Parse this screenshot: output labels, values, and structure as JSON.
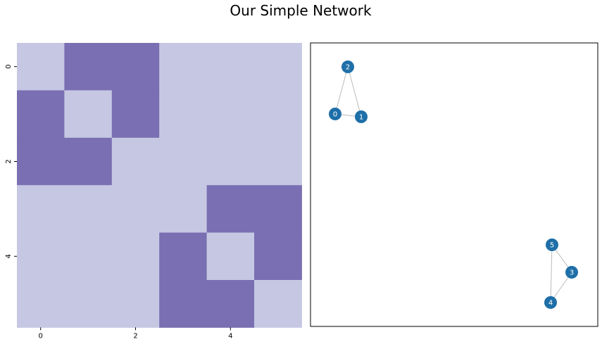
{
  "title": "Our Simple Network",
  "chart_data": [
    {
      "type": "heatmap",
      "rows": [
        0,
        1,
        2,
        3,
        4,
        5
      ],
      "cols": [
        0,
        1,
        2,
        3,
        4,
        5
      ],
      "matrix": [
        [
          0,
          1,
          1,
          0,
          0,
          0
        ],
        [
          1,
          0,
          1,
          0,
          0,
          0
        ],
        [
          1,
          1,
          0,
          0,
          0,
          0
        ],
        [
          0,
          0,
          0,
          0,
          1,
          1
        ],
        [
          0,
          0,
          0,
          1,
          0,
          1
        ],
        [
          0,
          0,
          0,
          1,
          1,
          0
        ]
      ],
      "xticks": [
        "0",
        "2",
        "4"
      ],
      "yticks": [
        "0",
        "2",
        "4"
      ],
      "colors": {
        "zero": "#c6c8e3",
        "one": "#7a6fb2"
      }
    },
    {
      "type": "network",
      "nodes": [
        {
          "id": "0"
        },
        {
          "id": "1"
        },
        {
          "id": "2"
        },
        {
          "id": "3"
        },
        {
          "id": "4"
        },
        {
          "id": "5"
        }
      ],
      "edges": [
        [
          "0",
          "1"
        ],
        [
          "0",
          "2"
        ],
        [
          "1",
          "2"
        ],
        [
          "3",
          "4"
        ],
        [
          "3",
          "5"
        ],
        [
          "4",
          "5"
        ]
      ],
      "node_color": "#1f6fa8",
      "edge_color": "#bbbbbb"
    }
  ]
}
